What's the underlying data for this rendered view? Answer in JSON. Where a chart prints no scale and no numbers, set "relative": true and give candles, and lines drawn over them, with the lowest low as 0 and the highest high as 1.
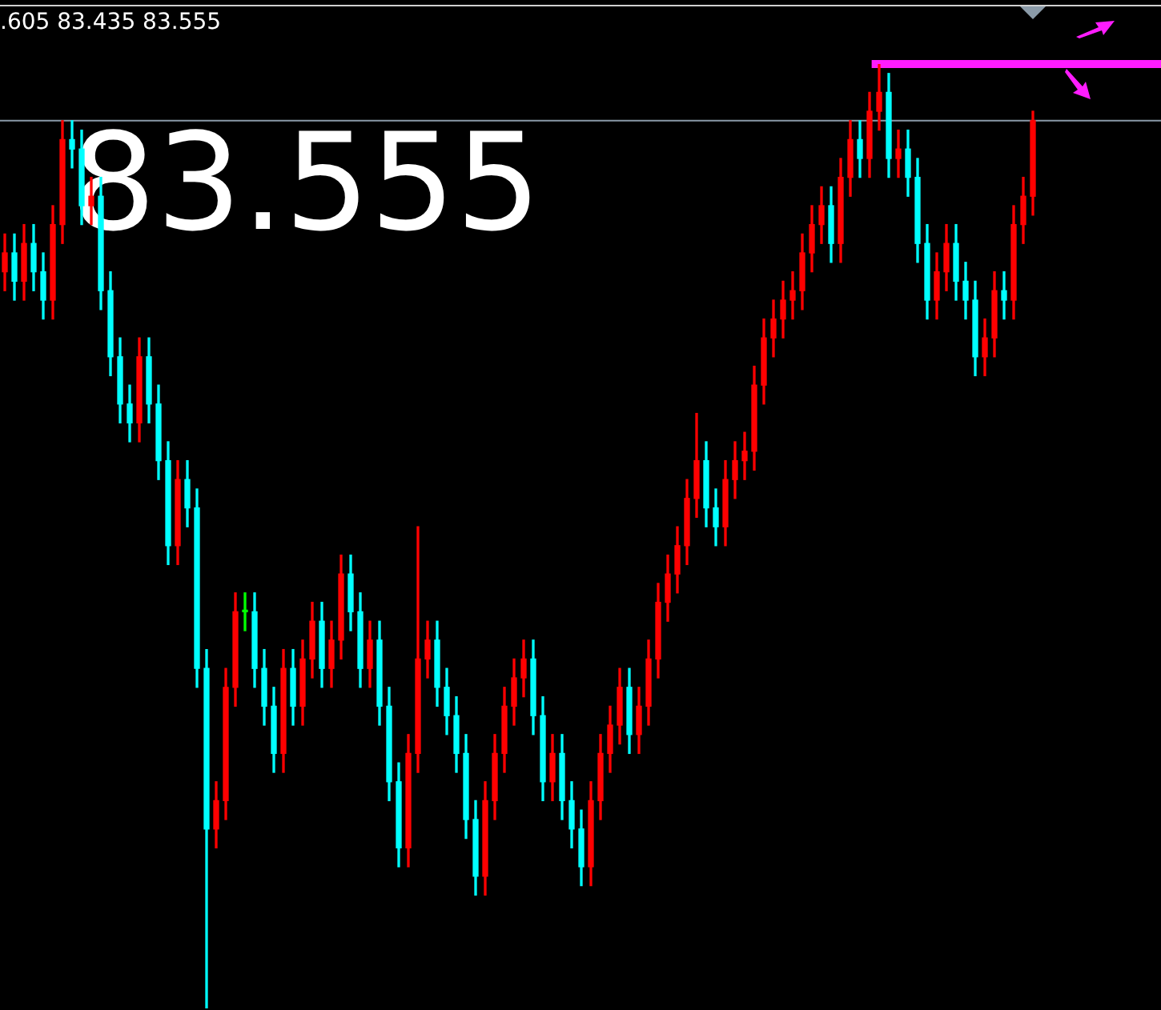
{
  "chart_data": {
    "type": "candlestick",
    "relative": true,
    "legend": false,
    "annotations": [
      ".605 83.435 83.555",
      "83.555"
    ],
    "categories": [
      null,
      null,
      null,
      null,
      null,
      null,
      null,
      null,
      null,
      null,
      null,
      null,
      null,
      null,
      null,
      null,
      null,
      null,
      null,
      null,
      null,
      null,
      null,
      null,
      null,
      null,
      null,
      null,
      null,
      null,
      null,
      null,
      null,
      null,
      null,
      null,
      null,
      null,
      null,
      null,
      null,
      null,
      null,
      null,
      null,
      null,
      null,
      null,
      null,
      null,
      null,
      null,
      null,
      null,
      null,
      null,
      null,
      null,
      null,
      null,
      null,
      null,
      null,
      null,
      null,
      null,
      null,
      null,
      null,
      null,
      null,
      null,
      null,
      null,
      null,
      null,
      null,
      null,
      null,
      null,
      null,
      null,
      null,
      null,
      null,
      null,
      null,
      null,
      null,
      null,
      null,
      null,
      null,
      null,
      null,
      null,
      null,
      null,
      null,
      null,
      null,
      null,
      null,
      null,
      null,
      null,
      null,
      null
    ],
    "ohlc": [
      [
        0.78,
        0.82,
        0.76,
        0.8
      ],
      [
        0.8,
        0.82,
        0.75,
        0.77
      ],
      [
        0.77,
        0.83,
        0.75,
        0.81
      ],
      [
        0.81,
        0.83,
        0.76,
        0.78
      ],
      [
        0.78,
        0.8,
        0.73,
        0.75
      ],
      [
        0.75,
        0.85,
        0.73,
        0.83
      ],
      [
        0.83,
        0.94,
        0.81,
        0.92
      ],
      [
        0.92,
        0.94,
        0.89,
        0.91
      ],
      [
        0.91,
        0.93,
        0.83,
        0.85
      ],
      [
        0.85,
        0.88,
        0.83,
        0.86
      ],
      [
        0.86,
        0.88,
        0.74,
        0.76
      ],
      [
        0.76,
        0.78,
        0.67,
        0.69
      ],
      [
        0.69,
        0.71,
        0.62,
        0.64
      ],
      [
        0.64,
        0.66,
        0.6,
        0.62
      ],
      [
        0.62,
        0.71,
        0.6,
        0.69
      ],
      [
        0.69,
        0.71,
        0.62,
        0.64
      ],
      [
        0.64,
        0.66,
        0.56,
        0.58
      ],
      [
        0.58,
        0.6,
        0.47,
        0.49
      ],
      [
        0.49,
        0.58,
        0.47,
        0.56
      ],
      [
        0.56,
        0.58,
        0.51,
        0.53
      ],
      [
        0.53,
        0.55,
        0.34,
        0.36
      ],
      [
        0.36,
        0.38,
        0,
        0.19
      ],
      [
        0.19,
        0.24,
        0.17,
        0.22
      ],
      [
        0.22,
        0.36,
        0.2,
        0.34
      ],
      [
        0.34,
        0.44,
        0.32,
        0.42
      ],
      [
        0.42,
        0.44,
        0.4,
        0.42
      ],
      [
        0.42,
        0.44,
        0.34,
        0.36
      ],
      [
        0.36,
        0.38,
        0.3,
        0.32
      ],
      [
        0.32,
        0.34,
        0.25,
        0.27
      ],
      [
        0.27,
        0.38,
        0.25,
        0.36
      ],
      [
        0.36,
        0.38,
        0.3,
        0.32
      ],
      [
        0.32,
        0.39,
        0.3,
        0.37
      ],
      [
        0.37,
        0.43,
        0.35,
        0.41
      ],
      [
        0.41,
        0.43,
        0.34,
        0.36
      ],
      [
        0.36,
        0.41,
        0.34,
        0.39
      ],
      [
        0.39,
        0.48,
        0.37,
        0.46
      ],
      [
        0.46,
        0.48,
        0.4,
        0.42
      ],
      [
        0.42,
        0.44,
        0.34,
        0.36
      ],
      [
        0.36,
        0.41,
        0.34,
        0.39
      ],
      [
        0.39,
        0.41,
        0.3,
        0.32
      ],
      [
        0.32,
        0.34,
        0.22,
        0.24
      ],
      [
        0.24,
        0.26,
        0.15,
        0.17
      ],
      [
        0.17,
        0.29,
        0.15,
        0.27
      ],
      [
        0.27,
        0.51,
        0.25,
        0.37
      ],
      [
        0.37,
        0.41,
        0.35,
        0.39
      ],
      [
        0.39,
        0.41,
        0.32,
        0.34
      ],
      [
        0.34,
        0.36,
        0.29,
        0.31
      ],
      [
        0.31,
        0.33,
        0.25,
        0.27
      ],
      [
        0.27,
        0.29,
        0.18,
        0.2
      ],
      [
        0.2,
        0.22,
        0.12,
        0.14
      ],
      [
        0.14,
        0.24,
        0.12,
        0.22
      ],
      [
        0.22,
        0.29,
        0.2,
        0.27
      ],
      [
        0.27,
        0.34,
        0.25,
        0.32
      ],
      [
        0.32,
        0.37,
        0.3,
        0.35
      ],
      [
        0.35,
        0.39,
        0.33,
        0.37
      ],
      [
        0.37,
        0.39,
        0.29,
        0.31
      ],
      [
        0.31,
        0.33,
        0.22,
        0.24
      ],
      [
        0.24,
        0.29,
        0.22,
        0.27
      ],
      [
        0.27,
        0.29,
        0.2,
        0.22
      ],
      [
        0.22,
        0.24,
        0.17,
        0.19
      ],
      [
        0.19,
        0.21,
        0.13,
        0.15
      ],
      [
        0.15,
        0.24,
        0.13,
        0.22
      ],
      [
        0.22,
        0.29,
        0.2,
        0.27
      ],
      [
        0.27,
        0.32,
        0.25,
        0.3
      ],
      [
        0.3,
        0.36,
        0.28,
        0.34
      ],
      [
        0.34,
        0.36,
        0.27,
        0.29
      ],
      [
        0.29,
        0.34,
        0.27,
        0.32
      ],
      [
        0.32,
        0.39,
        0.3,
        0.37
      ],
      [
        0.37,
        0.45,
        0.35,
        0.43
      ],
      [
        0.43,
        0.48,
        0.41,
        0.46
      ],
      [
        0.46,
        0.51,
        0.44,
        0.49
      ],
      [
        0.49,
        0.56,
        0.47,
        0.54
      ],
      [
        0.54,
        0.63,
        0.52,
        0.58
      ],
      [
        0.58,
        0.6,
        0.51,
        0.53
      ],
      [
        0.53,
        0.55,
        0.49,
        0.51
      ],
      [
        0.51,
        0.58,
        0.49,
        0.56
      ],
      [
        0.56,
        0.6,
        0.54,
        0.58
      ],
      [
        0.58,
        0.61,
        0.56,
        0.59
      ],
      [
        0.59,
        0.68,
        0.57,
        0.66
      ],
      [
        0.66,
        0.73,
        0.64,
        0.71
      ],
      [
        0.71,
        0.75,
        0.69,
        0.73
      ],
      [
        0.73,
        0.77,
        0.71,
        0.75
      ],
      [
        0.75,
        0.78,
        0.73,
        0.76
      ],
      [
        0.76,
        0.82,
        0.74,
        0.8
      ],
      [
        0.8,
        0.85,
        0.78,
        0.83
      ],
      [
        0.83,
        0.87,
        0.81,
        0.85
      ],
      [
        0.85,
        0.87,
        0.79,
        0.81
      ],
      [
        0.81,
        0.9,
        0.79,
        0.88
      ],
      [
        0.88,
        0.94,
        0.86,
        0.92
      ],
      [
        0.92,
        0.94,
        0.88,
        0.9
      ],
      [
        0.9,
        0.97,
        0.88,
        0.95
      ],
      [
        0.95,
        1,
        0.93,
        0.97
      ],
      [
        0.97,
        0.99,
        0.88,
        0.9
      ],
      [
        0.9,
        0.93,
        0.88,
        0.91
      ],
      [
        0.91,
        0.93,
        0.86,
        0.88
      ],
      [
        0.88,
        0.9,
        0.79,
        0.81
      ],
      [
        0.81,
        0.83,
        0.73,
        0.75
      ],
      [
        0.75,
        0.8,
        0.73,
        0.78
      ],
      [
        0.78,
        0.83,
        0.76,
        0.81
      ],
      [
        0.81,
        0.83,
        0.75,
        0.77
      ],
      [
        0.77,
        0.79,
        0.73,
        0.75
      ],
      [
        0.75,
        0.77,
        0.67,
        0.69
      ],
      [
        0.69,
        0.73,
        0.67,
        0.71
      ],
      [
        0.71,
        0.78,
        0.69,
        0.76
      ],
      [
        0.76,
        0.78,
        0.73,
        0.75
      ],
      [
        0.75,
        0.85,
        0.73,
        0.83
      ],
      [
        0.83,
        0.88,
        0.81,
        0.86
      ],
      [
        0.86,
        0.95,
        0.84,
        0.94
      ]
    ],
    "colors": [
      "#ff0000",
      "#00ffff",
      "#ff0000",
      "#00ffff",
      "#00ffff",
      "#ff0000",
      "#ff0000",
      "#00ffff",
      "#00ffff",
      "#ff0000",
      "#00ffff",
      "#00ffff",
      "#00ffff",
      "#00ffff",
      "#ff0000",
      "#00ffff",
      "#00ffff",
      "#00ffff",
      "#ff0000",
      "#00ffff",
      "#00ffff",
      "#00ffff",
      "#ff0000",
      "#ff0000",
      "#ff0000",
      "#00ff00",
      "#00ffff",
      "#00ffff",
      "#00ffff",
      "#ff0000",
      "#00ffff",
      "#ff0000",
      "#ff0000",
      "#00ffff",
      "#ff0000",
      "#ff0000",
      "#00ffff",
      "#00ffff",
      "#ff0000",
      "#00ffff",
      "#00ffff",
      "#00ffff",
      "#ff0000",
      "#ff0000",
      "#ff0000",
      "#00ffff",
      "#00ffff",
      "#00ffff",
      "#00ffff",
      "#00ffff",
      "#ff0000",
      "#ff0000",
      "#ff0000",
      "#ff0000",
      "#ff0000",
      "#00ffff",
      "#00ffff",
      "#ff0000",
      "#00ffff",
      "#00ffff",
      "#00ffff",
      "#ff0000",
      "#ff0000",
      "#ff0000",
      "#ff0000",
      "#00ffff",
      "#ff0000",
      "#ff0000",
      "#ff0000",
      "#ff0000",
      "#ff0000",
      "#ff0000",
      "#ff0000",
      "#00ffff",
      "#00ffff",
      "#ff0000",
      "#ff0000",
      "#ff0000",
      "#ff0000",
      "#ff0000",
      "#ff0000",
      "#ff0000",
      "#ff0000",
      "#ff0000",
      "#ff0000",
      "#ff0000",
      "#00ffff",
      "#ff0000",
      "#ff0000",
      "#00ffff",
      "#ff0000",
      "#ff0000",
      "#00ffff",
      "#ff0000",
      "#00ffff",
      "#00ffff",
      "#00ffff",
      "#ff0000",
      "#ff0000",
      "#00ffff",
      "#00ffff",
      "#00ffff",
      "#ff0000",
      "#ff0000",
      "#00ffff",
      "#ff0000",
      "#ff0000",
      "#ff0000"
    ],
    "ref_lines": [
      {
        "axis": "y",
        "value": 0.94,
        "color": "#8a9aa8"
      },
      {
        "axis": "y",
        "value": 1,
        "color": "#ff1cff"
      }
    ]
  }
}
